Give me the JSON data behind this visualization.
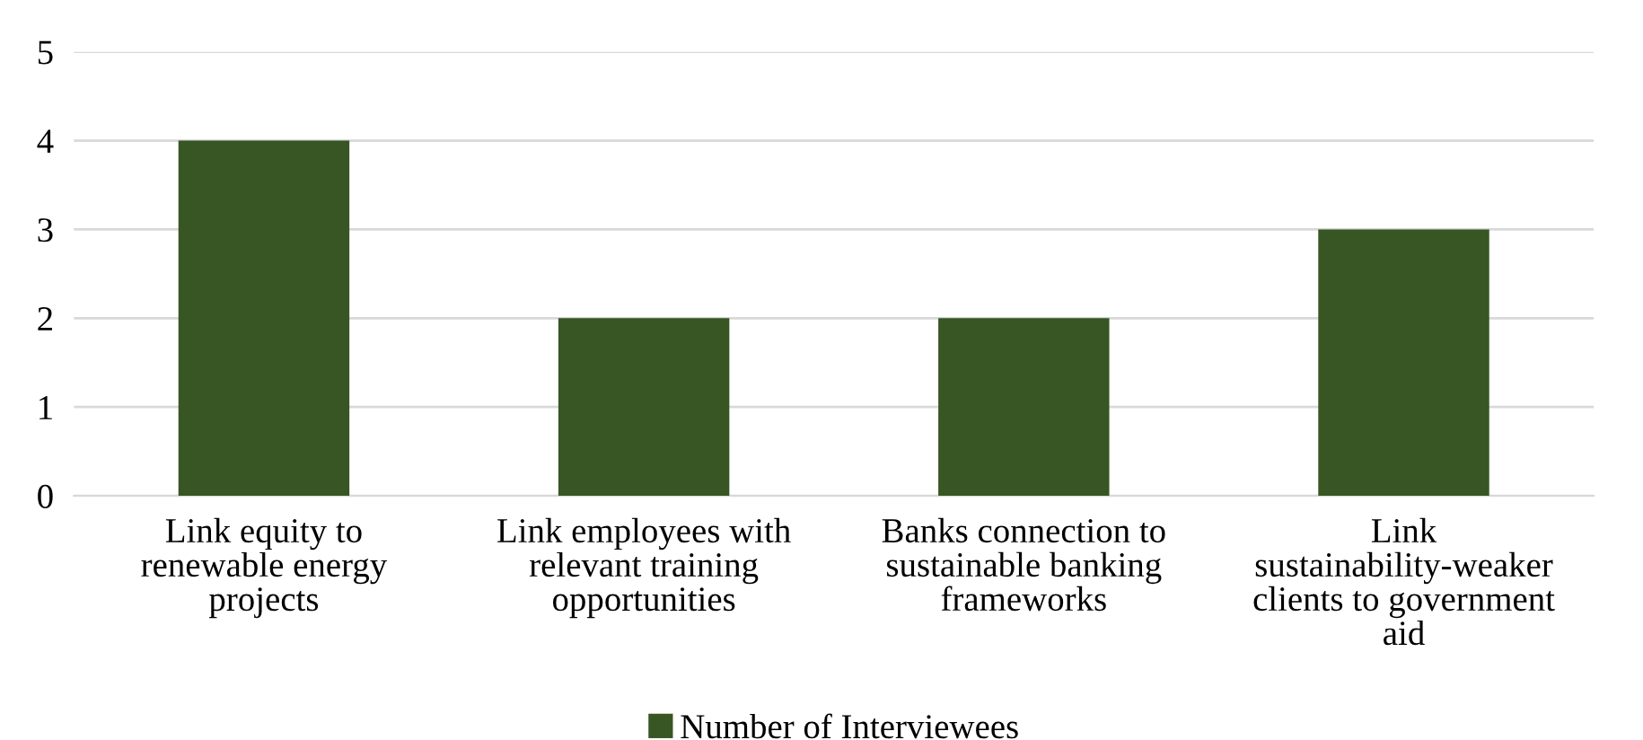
{
  "chart_data": {
    "type": "bar",
    "categories": [
      "Link equity to renewable energy projects",
      "Link employees with relevant training opportunities",
      "Banks connection to sustainable banking frameworks",
      "Link sustainability-weaker clients to government aid"
    ],
    "series": [
      {
        "name": "Number of Interviewees",
        "color": "#375623",
        "values": [
          4,
          2,
          2,
          3
        ]
      }
    ],
    "ylim": [
      0,
      5
    ],
    "yticks": [
      0,
      1,
      2,
      3,
      4,
      5
    ],
    "grid": "y",
    "legend": "bottom"
  }
}
